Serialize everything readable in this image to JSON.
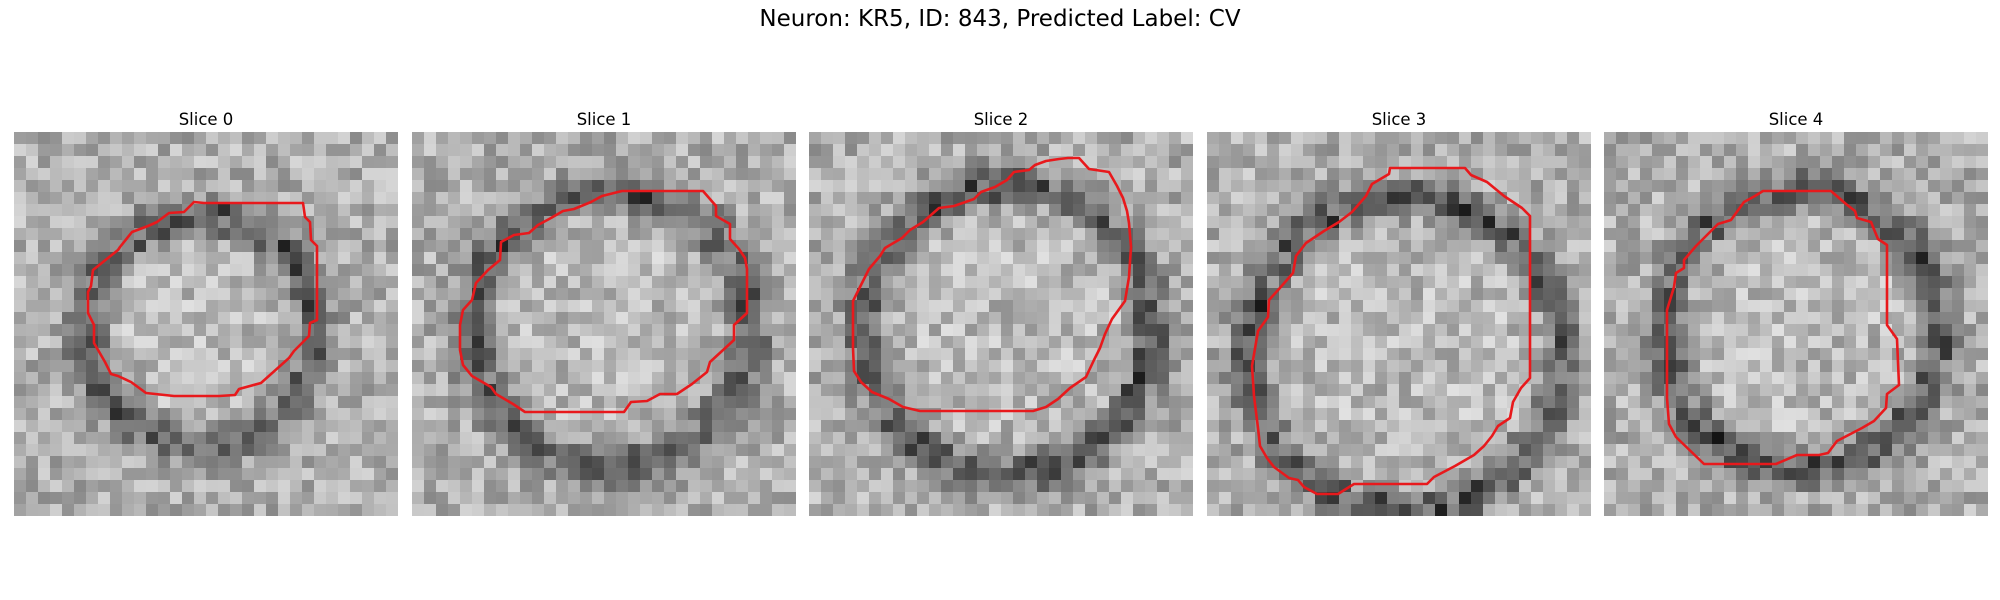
{
  "figure": {
    "title": "Neuron: KR5, ID: 843, Predicted Label: CV"
  },
  "panels": [
    {
      "title": "Slice 0"
    },
    {
      "title": "Slice 1"
    },
    {
      "title": "Slice 2"
    },
    {
      "title": "Slice 3"
    },
    {
      "title": "Slice 4"
    }
  ],
  "style": {
    "contour_color": "#e8191c",
    "colormap": "grayscale"
  }
}
